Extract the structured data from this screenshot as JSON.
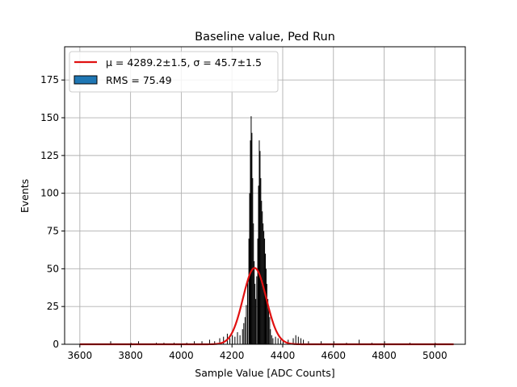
{
  "chart_data": {
    "type": "bar",
    "title": "Baseline value, Ped Run",
    "xlabel": "Sample Value [ADC Counts]",
    "ylabel": "Events",
    "xlim": [
      3540,
      5120
    ],
    "ylim": [
      0,
      197
    ],
    "xticks": [
      3600,
      3800,
      4000,
      4200,
      4400,
      4600,
      4800,
      5000
    ],
    "yticks": [
      0,
      25,
      50,
      75,
      100,
      125,
      150,
      175
    ],
    "grid": true,
    "legend_position": "top-left",
    "legend": {
      "fit_label": "μ = 4289.2±1.5, σ = 45.7±1.5",
      "hist_label": "RMS = 75.49"
    },
    "colors": {
      "histogram_fill": "#000000",
      "legend_patch": "#1f77b4",
      "fit_line": "#e01010",
      "grid": "#b0b0b0"
    },
    "fit": {
      "mu": 4289.2,
      "sigma": 45.7,
      "amplitude": 50.5,
      "x_range": [
        3600,
        5075
      ]
    },
    "histogram": {
      "bin_width": 3,
      "bins": [
        [
          3720,
          2
        ],
        [
          3800,
          1
        ],
        [
          3830,
          2
        ],
        [
          3900,
          1
        ],
        [
          3930,
          1
        ],
        [
          3970,
          1
        ],
        [
          4020,
          1
        ],
        [
          4050,
          2
        ],
        [
          4080,
          2
        ],
        [
          4110,
          3
        ],
        [
          4130,
          2
        ],
        [
          4150,
          4
        ],
        [
          4165,
          5
        ],
        [
          4180,
          7
        ],
        [
          4190,
          4
        ],
        [
          4200,
          6
        ],
        [
          4210,
          5
        ],
        [
          4220,
          8
        ],
        [
          4230,
          6
        ],
        [
          4240,
          10
        ],
        [
          4245,
          14
        ],
        [
          4250,
          18
        ],
        [
          4255,
          26
        ],
        [
          4260,
          42
        ],
        [
          4265,
          70
        ],
        [
          4268,
          100
        ],
        [
          4271,
          135
        ],
        [
          4274,
          151
        ],
        [
          4277,
          140
        ],
        [
          4280,
          110
        ],
        [
          4283,
          80
        ],
        [
          4286,
          55
        ],
        [
          4289,
          40
        ],
        [
          4292,
          30
        ],
        [
          4296,
          45
        ],
        [
          4300,
          70
        ],
        [
          4303,
          105
        ],
        [
          4306,
          135
        ],
        [
          4309,
          128
        ],
        [
          4312,
          110
        ],
        [
          4315,
          95
        ],
        [
          4318,
          88
        ],
        [
          4321,
          80
        ],
        [
          4324,
          75
        ],
        [
          4327,
          70
        ],
        [
          4330,
          60
        ],
        [
          4333,
          50
        ],
        [
          4336,
          40
        ],
        [
          4340,
          30
        ],
        [
          4343,
          25
        ],
        [
          4347,
          18
        ],
        [
          4350,
          10
        ],
        [
          4355,
          6
        ],
        [
          4360,
          4
        ],
        [
          4370,
          5
        ],
        [
          4380,
          4
        ],
        [
          4390,
          3
        ],
        [
          4400,
          2
        ],
        [
          4420,
          3
        ],
        [
          4440,
          4
        ],
        [
          4450,
          6
        ],
        [
          4460,
          5
        ],
        [
          4470,
          4
        ],
        [
          4480,
          3
        ],
        [
          4500,
          2
        ],
        [
          4550,
          2
        ],
        [
          4600,
          2
        ],
        [
          4650,
          1
        ],
        [
          4700,
          3
        ],
        [
          4750,
          1
        ],
        [
          4800,
          2
        ],
        [
          4900,
          1
        ],
        [
          5000,
          1
        ]
      ]
    }
  }
}
